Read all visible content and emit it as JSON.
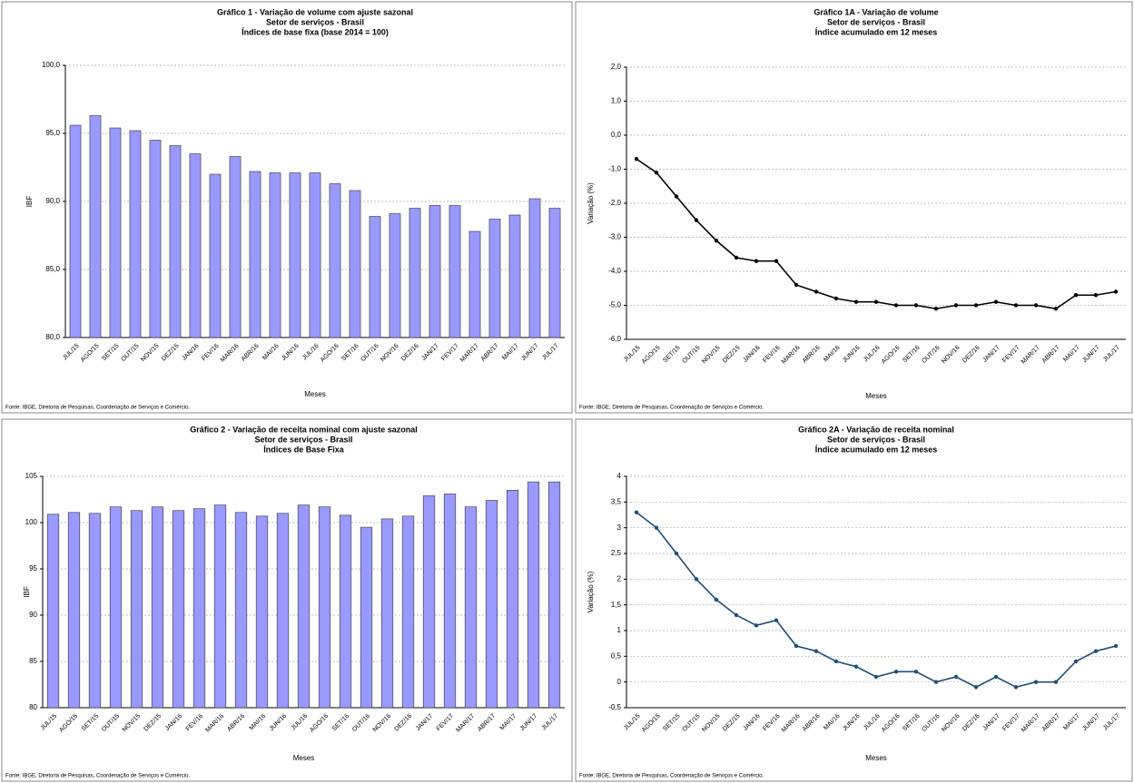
{
  "chart_data": [
    {
      "type": "bar",
      "title": "Gráfico 1 - Variação de volume com ajuste sazonal",
      "subtitle": [
        "Setor de serviços - Brasil",
        "Índices de base fixa  (base 2014 = 100)"
      ],
      "xlabel": "Meses",
      "ylabel": "IBF",
      "source": "Fonte: IBGE, Diretoria de Pesquisas, Coordenação de Serviços e Comércio.",
      "categories": [
        "JUL/15",
        "AGO/15",
        "SET/15",
        "OUT/15",
        "NOV/15",
        "DEZ/15",
        "JAN/16",
        "FEV/16",
        "MAR/16",
        "ABR/16",
        "MAI/16",
        "JUN/16",
        "JUL/16",
        "AGO/16",
        "SET/16",
        "OUT/16",
        "NOV/16",
        "DEZ/16",
        "JAN/17",
        "FEV/17",
        "MAR/17",
        "ABR/17",
        "MAI/17",
        "JUN/17",
        "JUL/17"
      ],
      "values": [
        95.6,
        96.3,
        95.4,
        95.2,
        94.5,
        94.1,
        93.5,
        92.0,
        93.3,
        92.2,
        92.1,
        92.1,
        92.1,
        91.3,
        90.8,
        88.9,
        89.1,
        89.5,
        89.7,
        89.7,
        87.8,
        88.7,
        89.0,
        90.2,
        89.5
      ],
      "color": "#9999ff",
      "ylim": [
        80,
        100
      ],
      "yticks": [
        {
          "value": 80,
          "label": "80,0"
        },
        {
          "value": 85,
          "label": "85,0"
        },
        {
          "value": 90,
          "label": "90,0"
        },
        {
          "value": 95,
          "label": "95,0"
        },
        {
          "value": 100,
          "label": "100,0"
        }
      ],
      "grid": true
    },
    {
      "type": "line",
      "title": "Gráfico 1A - Variação de volume",
      "subtitle": [
        "Setor de serviços - Brasil",
        "Índice acumulado em 12 meses"
      ],
      "xlabel": "Meses",
      "ylabel": "Variação (%)",
      "source": "Fonte: IBGE, Diretoria de Pesquisas, Coordenação de Serviços e Comércio.",
      "categories": [
        "JUL/15",
        "AGO/15",
        "SET/15",
        "OUT/15",
        "NOV/15",
        "DEZ/15",
        "JAN/16",
        "FEV/16",
        "MAR/16",
        "ABR/16",
        "MAI/16",
        "JUN/16",
        "JUL/16",
        "AGO/16",
        "SET/16",
        "OUT/16",
        "NOV/16",
        "DEZ/16",
        "JAN/17",
        "FEV/17",
        "MAR/17",
        "ABR/17",
        "MAI/17",
        "JUN/17",
        "JUL/17"
      ],
      "values": [
        -0.7,
        -1.1,
        -1.8,
        -2.5,
        -3.1,
        -3.6,
        -3.7,
        -3.7,
        -4.4,
        -4.6,
        -4.8,
        -4.9,
        -4.9,
        -5.0,
        -5.0,
        -5.1,
        -5.0,
        -5.0,
        -4.9,
        -5.0,
        -5.0,
        -5.1,
        -4.7,
        -4.7,
        -4.6
      ],
      "color": "#000000",
      "ylim": [
        -6,
        2
      ],
      "yticks": [
        {
          "value": -6,
          "label": "-6,0"
        },
        {
          "value": -5,
          "label": "-5,0"
        },
        {
          "value": -4,
          "label": "-4,0"
        },
        {
          "value": -3,
          "label": "-3,0"
        },
        {
          "value": -2,
          "label": "-2,0"
        },
        {
          "value": -1,
          "label": "-1,0"
        },
        {
          "value": 0,
          "label": "0,0"
        },
        {
          "value": 1,
          "label": "1,0"
        },
        {
          "value": 2,
          "label": "2,0"
        }
      ],
      "grid": true
    },
    {
      "type": "bar",
      "title": "Gráfico 2 - Variação de receita nominal com ajuste sazonal",
      "subtitle": [
        "Setor de serviços - Brasil",
        "Índices de Base Fixa"
      ],
      "xlabel": "Meses",
      "ylabel": "IBF",
      "source": "Fonte: IBGE, Diretoria de Pesquisas, Coordenação de Serviços e Comércio.",
      "categories": [
        "JUL/15",
        "AGO/15",
        "SET/15",
        "OUT/15",
        "NOV/15",
        "DEZ/15",
        "JAN/16",
        "FEV/16",
        "MAR/16",
        "ABR/16",
        "MAI/16",
        "JUN/16",
        "JUL/16",
        "AGO/16",
        "SET/16",
        "OUT/16",
        "NOV/16",
        "DEZ/16",
        "JAN/17",
        "FEV/17",
        "MAR/17",
        "ABR/17",
        "MAI/17",
        "JUN/17",
        "JUL/17"
      ],
      "values": [
        100.9,
        101.1,
        101.0,
        101.7,
        101.3,
        101.7,
        101.3,
        101.5,
        101.9,
        101.1,
        100.7,
        101.0,
        101.9,
        101.7,
        100.8,
        99.5,
        100.4,
        100.7,
        102.9,
        103.1,
        101.7,
        102.4,
        103.5,
        104.4,
        104.4
      ],
      "color": "#9999ff",
      "ylim": [
        80,
        105
      ],
      "yticks": [
        80,
        85,
        90,
        95,
        100,
        105
      ],
      "grid": true
    },
    {
      "type": "line",
      "title": "Gráfico 2A - Variação de receita nominal",
      "subtitle": [
        "Setor de serviços - Brasil",
        "Índice acumulado em 12 meses"
      ],
      "xlabel": "Meses",
      "ylabel": "Variação (%)",
      "source": "Fonte: IBGE, Diretoria de Pesquisas, Coordenação de Serviços e Comércio.",
      "categories": [
        "JUL/15",
        "AGO/15",
        "SET/15",
        "OUT/15",
        "NOV/15",
        "DEZ/15",
        "JAN/16",
        "FEV/16",
        "MAR/16",
        "ABR/16",
        "MAI/16",
        "JUN/16",
        "JUL/16",
        "AGO/16",
        "SET/16",
        "OUT/16",
        "NOV/16",
        "DEZ/16",
        "JAN/17",
        "FEV/17",
        "MAR/17",
        "ABR/17",
        "MAI/17",
        "JUN/17",
        "JUL/17"
      ],
      "values": [
        3.3,
        3.0,
        2.5,
        2.0,
        1.6,
        1.3,
        1.1,
        1.2,
        0.7,
        0.6,
        0.4,
        0.3,
        0.1,
        0.2,
        0.2,
        0.0,
        0.1,
        -0.1,
        0.1,
        -0.1,
        0.0,
        0.0,
        0.4,
        0.6,
        0.7
      ],
      "color": "#1f4e79",
      "ylim": [
        -0.5,
        4
      ],
      "yticks": [
        {
          "value": -0.5,
          "label": "-0,5"
        },
        0,
        {
          "value": 0.5,
          "label": "0,5"
        },
        1,
        {
          "value": 1.5,
          "label": "1,5"
        },
        2,
        {
          "value": 2.5,
          "label": "2,5"
        },
        3,
        {
          "value": 3.5,
          "label": "3,5"
        },
        4
      ],
      "grid": true
    }
  ]
}
